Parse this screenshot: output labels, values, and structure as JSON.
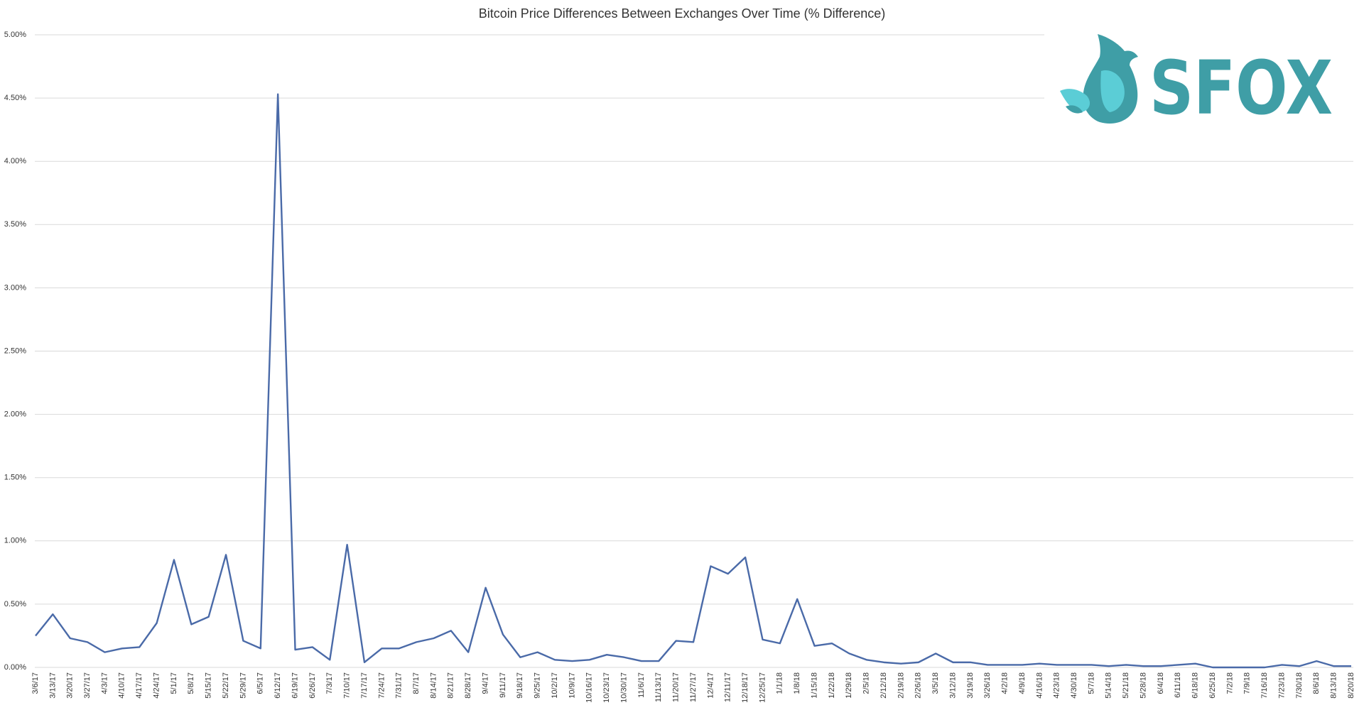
{
  "chart_data": {
    "type": "line",
    "title": "Bitcoin Price Differences Between Exchanges Over Time (% Difference)",
    "categories": [
      "3/6/17",
      "3/13/17",
      "3/20/17",
      "3/27/17",
      "4/3/17",
      "4/10/17",
      "4/17/17",
      "4/24/17",
      "5/1/17",
      "5/8/17",
      "5/15/17",
      "5/22/17",
      "5/29/17",
      "6/5/17",
      "6/12/17",
      "6/19/17",
      "6/26/17",
      "7/3/17",
      "7/10/17",
      "7/17/17",
      "7/24/17",
      "7/31/17",
      "8/7/17",
      "8/14/17",
      "8/21/17",
      "8/28/17",
      "9/4/17",
      "9/11/17",
      "9/18/17",
      "9/25/17",
      "10/2/17",
      "10/9/17",
      "10/16/17",
      "10/23/17",
      "10/30/17",
      "11/6/17",
      "11/13/17",
      "11/20/17",
      "11/27/17",
      "12/4/17",
      "12/11/17",
      "12/18/17",
      "12/25/17",
      "1/1/18",
      "1/8/18",
      "1/15/18",
      "1/22/18",
      "1/29/18",
      "2/5/18",
      "2/12/18",
      "2/19/18",
      "2/26/18",
      "3/5/18",
      "3/12/18",
      "3/19/18",
      "3/26/18",
      "4/2/18",
      "4/9/18",
      "4/16/18",
      "4/23/18",
      "4/30/18",
      "5/7/18",
      "5/14/18",
      "5/21/18",
      "5/28/18",
      "6/4/18",
      "6/11/18",
      "6/18/18",
      "6/25/18",
      "7/2/18",
      "7/9/18",
      "7/16/18",
      "7/23/18",
      "7/30/18",
      "8/6/18",
      "8/13/18",
      "8/20/18"
    ],
    "values": [
      0.25,
      0.42,
      0.23,
      0.2,
      0.12,
      0.15,
      0.16,
      0.35,
      0.85,
      0.34,
      0.4,
      0.89,
      0.21,
      0.15,
      4.53,
      0.14,
      0.16,
      0.06,
      0.97,
      0.04,
      0.15,
      0.15,
      0.2,
      0.23,
      0.29,
      0.12,
      0.63,
      0.26,
      0.08,
      0.12,
      0.06,
      0.05,
      0.06,
      0.1,
      0.08,
      0.05,
      0.05,
      0.21,
      0.2,
      0.8,
      0.74,
      0.87,
      0.22,
      0.19,
      0.54,
      0.17,
      0.19,
      0.11,
      0.06,
      0.04,
      0.03,
      0.04,
      0.11,
      0.04,
      0.04,
      0.02,
      0.02,
      0.02,
      0.03,
      0.02,
      0.02,
      0.02,
      0.01,
      0.02,
      0.01,
      0.01,
      0.02,
      0.03,
      0,
      0,
      0,
      0,
      0.02,
      0.01,
      0.05,
      0.01,
      0.01
    ],
    "color": "#4a6aa8",
    "ylim": [
      0,
      5
    ],
    "yticks": [
      {
        "value": 0,
        "label": "0.00%"
      },
      {
        "value": 0.5,
        "label": "0.50%"
      },
      {
        "value": 1,
        "label": "1.00%"
      },
      {
        "value": 1.5,
        "label": "1.50%"
      },
      {
        "value": 2,
        "label": "2.00%"
      },
      {
        "value": 2.5,
        "label": "2.50%"
      },
      {
        "value": 3,
        "label": "3.00%"
      },
      {
        "value": 3.5,
        "label": "3.50%"
      },
      {
        "value": 4,
        "label": "4.00%"
      },
      {
        "value": 4.5,
        "label": "4.50%"
      },
      {
        "value": 5,
        "label": "5.00%"
      }
    ],
    "grid": true
  },
  "logo": {
    "text": "SFOX"
  }
}
